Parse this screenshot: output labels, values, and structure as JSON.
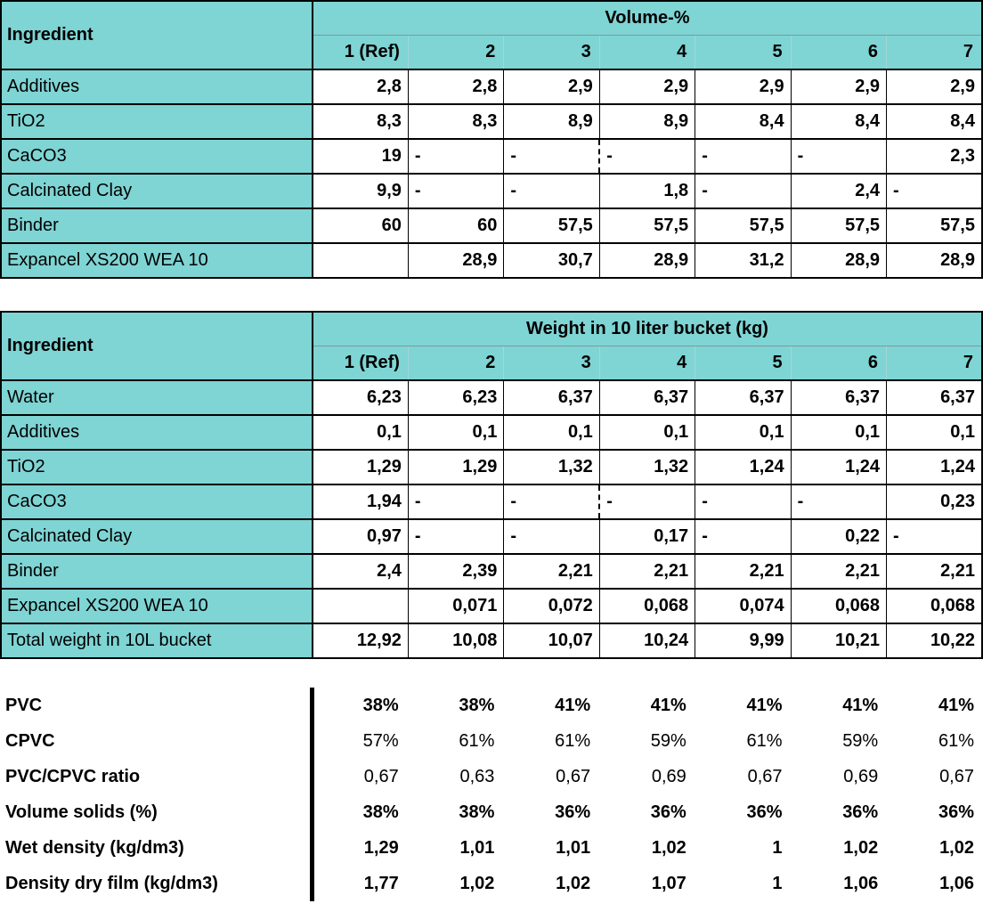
{
  "colors": {
    "header_teal": "#7fd4d4",
    "border_black": "#000000"
  },
  "table1": {
    "ingredient_header": "Ingredient",
    "group_header": "Volume-%",
    "columns": [
      "1 (Ref)",
      "2",
      "3",
      "4",
      "5",
      "6",
      "7"
    ],
    "rows": [
      {
        "label": "Additives",
        "values": [
          "2,8",
          "2,8",
          "2,9",
          "2,9",
          "2,9",
          "2,9",
          "2,9"
        ]
      },
      {
        "label": "TiO2",
        "values": [
          "8,3",
          "8,3",
          "8,9",
          "8,9",
          "8,4",
          "8,4",
          "8,4"
        ]
      },
      {
        "label": "CaCO3",
        "values": [
          "19",
          "-",
          "-",
          "-",
          "-",
          "-",
          "2,3"
        ]
      },
      {
        "label": "Calcinated Clay",
        "values": [
          "9,9",
          "-",
          "-",
          "1,8",
          "-",
          "2,4",
          "-"
        ]
      },
      {
        "label": "Binder",
        "values": [
          "60",
          "60",
          "57,5",
          "57,5",
          "57,5",
          "57,5",
          "57,5"
        ]
      },
      {
        "label": "Expancel XS200 WEA 10",
        "values": [
          "",
          "28,9",
          "30,7",
          "28,9",
          "31,2",
          "28,9",
          "28,9"
        ]
      }
    ]
  },
  "table2": {
    "ingredient_header": "Ingredient",
    "group_header": "Weight in 10 liter bucket (kg)",
    "columns": [
      "1 (Ref)",
      "2",
      "3",
      "4",
      "5",
      "6",
      "7"
    ],
    "rows": [
      {
        "label": "Water",
        "values": [
          "6,23",
          "6,23",
          "6,37",
          "6,37",
          "6,37",
          "6,37",
          "6,37"
        ]
      },
      {
        "label": "Additives",
        "values": [
          "0,1",
          "0,1",
          "0,1",
          "0,1",
          "0,1",
          "0,1",
          "0,1"
        ]
      },
      {
        "label": "TiO2",
        "values": [
          "1,29",
          "1,29",
          "1,32",
          "1,32",
          "1,24",
          "1,24",
          "1,24"
        ]
      },
      {
        "label": "CaCO3",
        "values": [
          "1,94",
          "-",
          "-",
          "-",
          "-",
          "-",
          "0,23"
        ]
      },
      {
        "label": "Calcinated Clay",
        "values": [
          "0,97",
          "-",
          "-",
          "0,17",
          "-",
          "0,22",
          "-"
        ]
      },
      {
        "label": "Binder",
        "values": [
          "2,4",
          "2,39",
          "2,21",
          "2,21",
          "2,21",
          "2,21",
          "2,21"
        ]
      },
      {
        "label": "Expancel XS200 WEA 10",
        "values": [
          "",
          "0,071",
          "0,072",
          "0,068",
          "0,074",
          "0,068",
          "0,068"
        ]
      },
      {
        "label": "Total weight in 10L bucket",
        "values": [
          "12,92",
          "10,08",
          "10,07",
          "10,24",
          "9,99",
          "10,21",
          "10,22"
        ]
      }
    ]
  },
  "summary": {
    "rows": [
      {
        "label": "PVC",
        "bold": true,
        "values": [
          "38%",
          "38%",
          "41%",
          "41%",
          "41%",
          "41%",
          "41%"
        ]
      },
      {
        "label": "CPVC",
        "bold": false,
        "values": [
          "57%",
          "61%",
          "61%",
          "59%",
          "61%",
          "59%",
          "61%"
        ]
      },
      {
        "label": "PVC/CPVC ratio",
        "bold": false,
        "values": [
          "0,67",
          "0,63",
          "0,67",
          "0,69",
          "0,67",
          "0,69",
          "0,67"
        ]
      },
      {
        "label": "Volume solids (%)",
        "bold": true,
        "values": [
          "38%",
          "38%",
          "36%",
          "36%",
          "36%",
          "36%",
          "36%"
        ]
      },
      {
        "label": "Wet density (kg/dm3)",
        "bold": true,
        "values": [
          "1,29",
          "1,01",
          "1,01",
          "1,02",
          "1",
          "1,02",
          "1,02"
        ]
      },
      {
        "label": "Density dry film (kg/dm3)",
        "bold": true,
        "values": [
          "1,77",
          "1,02",
          "1,02",
          "1,07",
          "1",
          "1,06",
          "1,06"
        ]
      }
    ]
  }
}
